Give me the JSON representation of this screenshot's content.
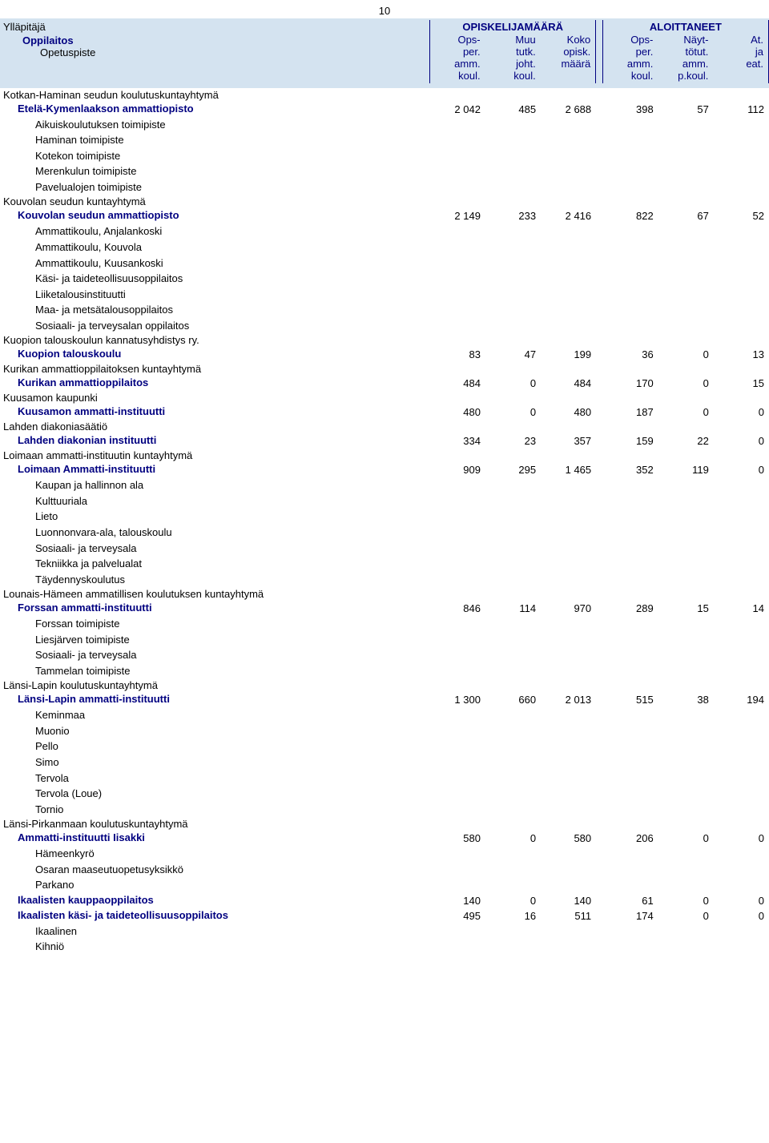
{
  "page_number": "10",
  "header": {
    "left_labels": {
      "yllapitaja": "Ylläpitäjä",
      "oppilaitos": "Oppilaitos",
      "opetuspiste": "Opetuspiste"
    },
    "group1": "OPISKELIJAMÄÄRÄ",
    "group2": "ALOITTANEET",
    "cols": {
      "c1": "Ops-\nper.\namm.\nkoul.",
      "c2": "Muu\ntutk.\njoht.\nkoul.",
      "c3": "Koko\nopisk.\nmäärä",
      "c4": "Ops-\nper.\namm.\nkoul.",
      "c5": "Näyt-\ntötut.\namm.\np.koul.",
      "c6": "At.\nja\neat."
    }
  },
  "sections": [
    {
      "yllapitaja": "Kotkan-Haminan seudun koulutuskuntayhtymä",
      "oppilaitokset": [
        {
          "name": "Etelä-Kymenlaakson ammattiopisto",
          "values": [
            "2 042",
            "485",
            "2 688",
            "398",
            "57",
            "112"
          ],
          "opetuspisteet": [
            "Aikuiskoulutuksen toimipiste",
            "Haminan toimipiste",
            "Kotekon toimipiste",
            "Merenkulun toimipiste",
            "Pavelualojen toimipiste"
          ]
        }
      ]
    },
    {
      "yllapitaja": "Kouvolan seudun kuntayhtymä",
      "oppilaitokset": [
        {
          "name": "Kouvolan seudun ammattiopisto",
          "values": [
            "2 149",
            "233",
            "2 416",
            "822",
            "67",
            "52"
          ],
          "opetuspisteet": [
            "Ammattikoulu, Anjalankoski",
            "Ammattikoulu, Kouvola",
            "Ammattikoulu, Kuusankoski",
            "Käsi- ja taideteollisuusoppilaitos",
            "Liiketalousinstituutti",
            "Maa- ja metsätalousoppilaitos",
            "Sosiaali- ja terveysalan oppilaitos"
          ]
        }
      ]
    },
    {
      "yllapitaja": "Kuopion talouskoulun kannatusyhdistys ry.",
      "oppilaitokset": [
        {
          "name": "Kuopion talouskoulu",
          "values": [
            "83",
            "47",
            "199",
            "36",
            "0",
            "13"
          ],
          "opetuspisteet": []
        }
      ]
    },
    {
      "yllapitaja": "Kurikan ammattioppilaitoksen kuntayhtymä",
      "oppilaitokset": [
        {
          "name": "Kurikan ammattioppilaitos",
          "values": [
            "484",
            "0",
            "484",
            "170",
            "0",
            "15"
          ],
          "opetuspisteet": []
        }
      ]
    },
    {
      "yllapitaja": "Kuusamon kaupunki",
      "oppilaitokset": [
        {
          "name": "Kuusamon ammatti-instituutti",
          "values": [
            "480",
            "0",
            "480",
            "187",
            "0",
            "0"
          ],
          "opetuspisteet": []
        }
      ]
    },
    {
      "yllapitaja": "Lahden diakoniasäätiö",
      "oppilaitokset": [
        {
          "name": "Lahden diakonian instituutti",
          "values": [
            "334",
            "23",
            "357",
            "159",
            "22",
            "0"
          ],
          "opetuspisteet": []
        }
      ]
    },
    {
      "yllapitaja": "Loimaan ammatti-instituutin kuntayhtymä",
      "oppilaitokset": [
        {
          "name": "Loimaan Ammatti-instituutti",
          "values": [
            "909",
            "295",
            "1 465",
            "352",
            "119",
            "0"
          ],
          "opetuspisteet": [
            "Kaupan ja hallinnon ala",
            "Kulttuuriala",
            "Lieto",
            "Luonnonvara-ala, talouskoulu",
            "Sosiaali- ja terveysala",
            "Tekniikka ja palvelualat",
            "Täydennyskoulutus"
          ]
        }
      ]
    },
    {
      "yllapitaja": "Lounais-Hämeen ammatillisen koulutuksen kuntayhtymä",
      "oppilaitokset": [
        {
          "name": "Forssan ammatti-instituutti",
          "values": [
            "846",
            "114",
            "970",
            "289",
            "15",
            "14"
          ],
          "opetuspisteet": [
            "Forssan toimipiste",
            "Liesjärven toimipiste",
            "Sosiaali- ja terveysala",
            "Tammelan toimipiste"
          ]
        }
      ]
    },
    {
      "yllapitaja": "Länsi-Lapin koulutuskuntayhtymä",
      "oppilaitokset": [
        {
          "name": "Länsi-Lapin ammatti-instituutti",
          "values": [
            "1 300",
            "660",
            "2 013",
            "515",
            "38",
            "194"
          ],
          "opetuspisteet": [
            "Keminmaa",
            "Muonio",
            "Pello",
            "Simo",
            "Tervola",
            "Tervola (Loue)",
            "Tornio"
          ]
        }
      ]
    },
    {
      "yllapitaja": "Länsi-Pirkanmaan koulutuskuntayhtymä",
      "oppilaitokset": [
        {
          "name": "Ammatti-instituutti Iisakki",
          "values": [
            "580",
            "0",
            "580",
            "206",
            "0",
            "0"
          ],
          "opetuspisteet": [
            "Hämeenkyrö",
            "Osaran maaseutuopetusyksikkö",
            "Parkano"
          ]
        },
        {
          "name": "Ikaalisten kauppaoppilaitos",
          "values": [
            "140",
            "0",
            "140",
            "61",
            "0",
            "0"
          ],
          "opetuspisteet": []
        },
        {
          "name": "Ikaalisten käsi- ja taideteollisuusoppilaitos",
          "values": [
            "495",
            "16",
            "511",
            "174",
            "0",
            "0"
          ],
          "opetuspisteet": [
            "Ikaalinen",
            "Kihniö"
          ]
        }
      ]
    }
  ]
}
